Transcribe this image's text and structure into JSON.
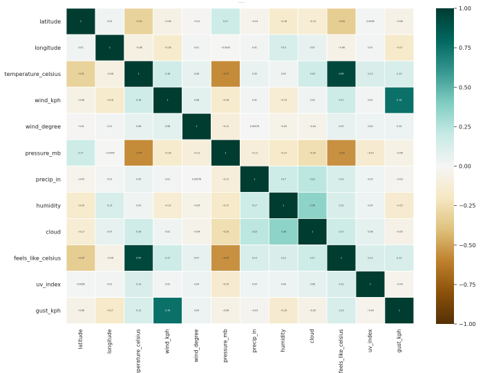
{
  "chart_data": {
    "type": "heatmap",
    "title": "———",
    "rows": [
      "latitude",
      "longitude",
      "temperature_celsius",
      "wind_kph",
      "wind_degree",
      "pressure_mb",
      "precip_in",
      "humidity",
      "cloud",
      "feels_like_celsius",
      "uv_index",
      "gust_kph"
    ],
    "columns": [
      "latitude",
      "longitude",
      "temperature_celsius",
      "wind_kph",
      "wind_degree",
      "pressure_mb",
      "precip_in",
      "humidity",
      "cloud",
      "feels_like_celsius",
      "uv_index",
      "gust_kph"
    ],
    "values": [
      [
        1,
        0.024,
        -0.31,
        -0.065,
        -0.01,
        0.17,
        -0.036,
        -0.16,
        -0.13,
        -0.34,
        0.0096,
        -0.06
      ],
      [
        0.024,
        1,
        -0.079,
        -0.16,
        0.013,
        -0.0042,
        0.011,
        0.13,
        0.066,
        -0.057,
        0.012,
        -0.17
      ],
      [
        -0.31,
        -0.079,
        1,
        0.16,
        0.063,
        -0.57,
        0.046,
        0.026,
        0.16,
        0.95,
        0.12,
        0.13
      ],
      [
        -0.065,
        -0.16,
        0.16,
        1,
        0.083,
        -0.16,
        0.011,
        -0.13,
        0.024,
        0.17,
        0.015,
        0.76
      ],
      [
        -0.01,
        0.013,
        0.063,
        0.083,
        1,
        -0.11,
        0.00078,
        -0.051,
        -0.044,
        0.065,
        0.038,
        0.038
      ],
      [
        0.17,
        -0.0042,
        -0.57,
        -0.16,
        -0.11,
        1,
        -0.11,
        -0.17,
        -0.25,
        -0.55,
        -0.15,
        -0.064
      ],
      [
        -0.036,
        0.011,
        0.046,
        0.011,
        0.00078,
        -0.11,
        1,
        0.17,
        0.23,
        0.13,
        0.031,
        -0.026
      ],
      [
        -0.16,
        0.13,
        0.026,
        -0.13,
        -0.051,
        -0.17,
        0.17,
        1,
        0.36,
        0.12,
        0.038,
        -0.15
      ],
      [
        -0.13,
        0.066,
        0.16,
        0.024,
        -0.044,
        -0.25,
        0.23,
        0.36,
        1,
        0.17,
        0.075,
        -0.055
      ],
      [
        -0.34,
        -0.057,
        0.95,
        0.17,
        0.065,
        -0.55,
        0.13,
        0.12,
        0.17,
        1,
        0.12,
        0.13
      ],
      [
        0.0096,
        0.012,
        0.12,
        0.015,
        0.038,
        -0.15,
        0.031,
        0.038,
        0.075,
        0.12,
        1,
        -0.037
      ],
      [
        -0.06,
        -0.17,
        0.13,
        0.76,
        0.038,
        -0.064,
        -0.026,
        -0.15,
        -0.055,
        0.13,
        -0.037,
        1
      ]
    ],
    "colorbar": {
      "min": -1.0,
      "max": 1.0,
      "ticks": [
        "1.00",
        "0.75",
        "0.50",
        "0.25",
        "0.00",
        "−0.25",
        "−0.50",
        "−0.75",
        "−1.00"
      ],
      "colormap": "BrBG",
      "colors": [
        "#543005",
        "#8c510a",
        "#bf812d",
        "#dfc27d",
        "#f6e8c3",
        "#f5f5f5",
        "#c7eae5",
        "#80cdc1",
        "#35978f",
        "#01665e",
        "#003c30"
      ]
    },
    "grid": false,
    "legend": "colorbar-right"
  }
}
